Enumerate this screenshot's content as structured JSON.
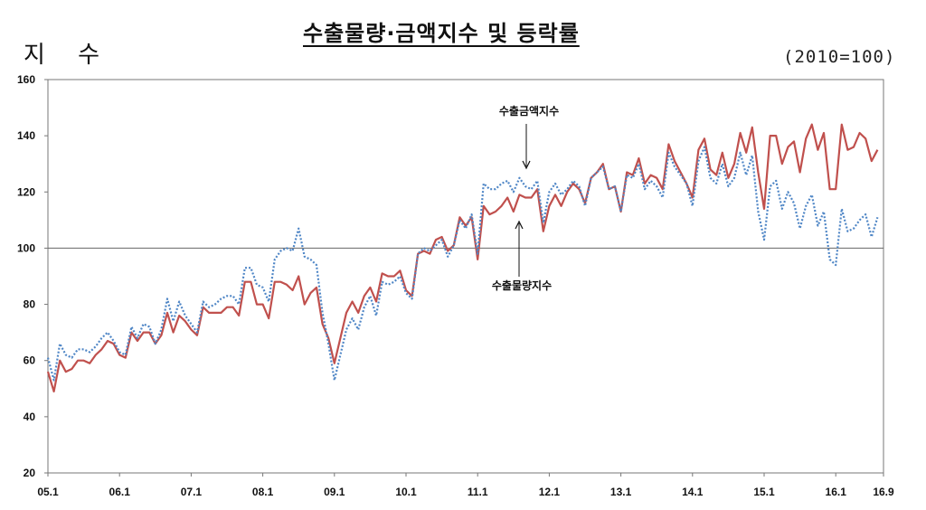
{
  "chart_data": {
    "type": "line",
    "title": "수출물량·금액지수 및 등락률",
    "ylabel": "지 수",
    "base_note": "(2010=100)",
    "ylim": [
      20,
      160
    ],
    "yticks": [
      20,
      40,
      60,
      80,
      100,
      120,
      140,
      160
    ],
    "xlim": [
      0,
      140
    ],
    "xticks": [
      {
        "label": "05.1",
        "i": 0
      },
      {
        "label": "06.1",
        "i": 12
      },
      {
        "label": "07.1",
        "i": 24
      },
      {
        "label": "08.1",
        "i": 36
      },
      {
        "label": "09.1",
        "i": 48
      },
      {
        "label": "10.1",
        "i": 60
      },
      {
        "label": "11.1",
        "i": 72
      },
      {
        "label": "12.1",
        "i": 84
      },
      {
        "label": "13.1",
        "i": 96
      },
      {
        "label": "14.1",
        "i": 108
      },
      {
        "label": "15.1",
        "i": 120
      },
      {
        "label": "16.1",
        "i": 132
      },
      {
        "label": "16.9",
        "i": 140
      }
    ],
    "reference_line": 100,
    "grid": false,
    "series": [
      {
        "name": "수출물량지수",
        "color": "#c0504d",
        "style": "solid",
        "values": [
          56,
          49,
          60,
          56,
          57,
          60,
          60,
          59,
          62,
          64,
          67,
          66,
          62,
          61,
          70,
          67,
          70,
          70,
          66,
          69,
          77,
          70,
          76,
          74,
          71,
          69,
          79,
          77,
          77,
          77,
          79,
          79,
          76,
          88,
          88,
          80,
          80,
          75,
          88,
          88,
          87,
          85,
          90,
          80,
          84,
          86,
          73,
          68,
          59,
          68,
          77,
          81,
          77,
          83,
          86,
          81,
          91,
          90,
          90,
          92,
          85,
          83,
          98,
          99,
          98,
          103,
          104,
          99,
          101,
          111,
          108,
          111,
          96,
          115,
          112,
          113,
          115,
          118,
          113,
          119,
          118,
          118,
          121,
          106,
          115,
          119,
          115,
          120,
          123,
          121,
          116,
          125,
          127,
          130,
          121,
          122,
          113,
          127,
          126,
          132,
          123,
          126,
          125,
          121,
          137,
          131,
          127,
          123,
          118,
          135,
          139,
          128,
          126,
          134,
          125,
          130,
          141,
          134,
          143,
          127,
          114,
          140,
          140,
          130,
          136,
          138,
          127,
          139,
          144,
          135,
          141,
          121,
          121,
          144,
          135,
          136,
          141,
          139,
          131,
          135
        ]
      },
      {
        "name": "수출금액지수",
        "color": "#4f86c6",
        "style": "dotted",
        "values": [
          61,
          53,
          66,
          62,
          61,
          64,
          64,
          63,
          65,
          68,
          70,
          67,
          63,
          62,
          72,
          68,
          73,
          72,
          66,
          71,
          82,
          74,
          81,
          76,
          73,
          70,
          81,
          79,
          80,
          82,
          83,
          83,
          80,
          93,
          93,
          87,
          86,
          81,
          96,
          99,
          100,
          99,
          107,
          97,
          96,
          94,
          77,
          66,
          53,
          62,
          71,
          75,
          71,
          79,
          83,
          76,
          88,
          87,
          88,
          90,
          84,
          82,
          98,
          100,
          99,
          101,
          103,
          97,
          101,
          110,
          107,
          112,
          98,
          123,
          121,
          121,
          123,
          124,
          120,
          125,
          122,
          121,
          124,
          109,
          120,
          123,
          119,
          121,
          124,
          122,
          115,
          125,
          127,
          129,
          121,
          122,
          113,
          126,
          125,
          130,
          121,
          124,
          122,
          118,
          134,
          129,
          126,
          123,
          115,
          131,
          136,
          125,
          123,
          130,
          122,
          125,
          134,
          126,
          133,
          113,
          103,
          122,
          124,
          114,
          120,
          116,
          107,
          115,
          119,
          108,
          113,
          96,
          94,
          114,
          106,
          107,
          110,
          112,
          104,
          111
        ]
      }
    ],
    "annotations": [
      "수출금액지수",
      "수출물량지수"
    ]
  }
}
